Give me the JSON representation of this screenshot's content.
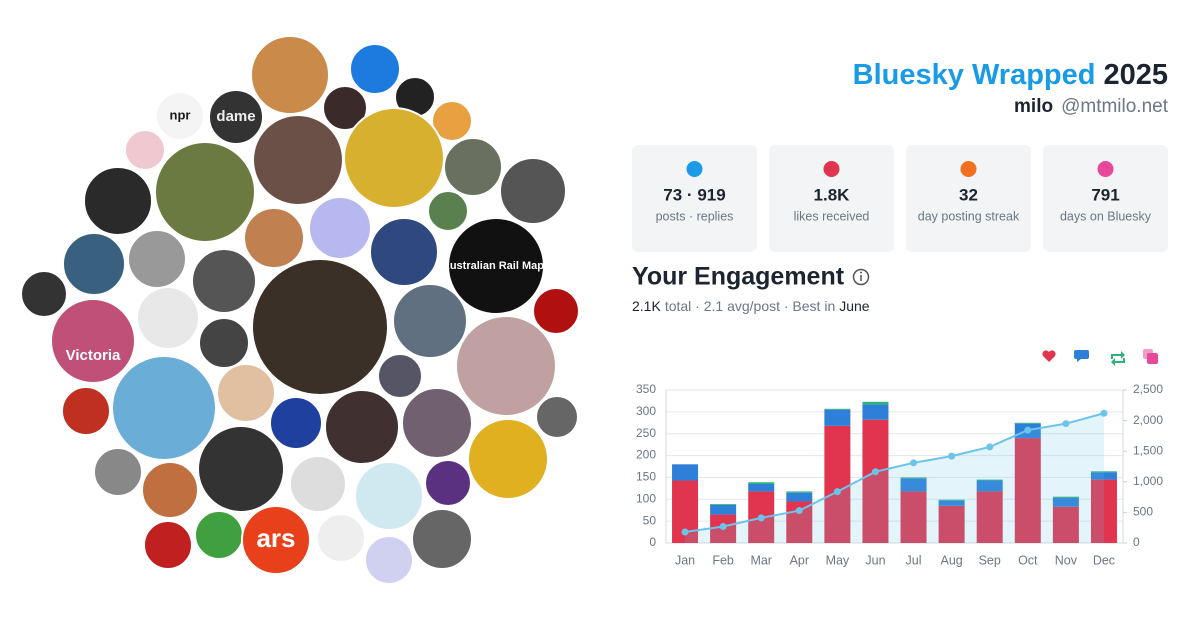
{
  "header": {
    "title": "Bluesky Wrapped",
    "year": "2025",
    "name": "milo",
    "handle": "@mtmilo.net"
  },
  "avatars": [
    "npr",
    "dame",
    "Australian Rail Maps",
    "Victoria",
    "ars"
  ],
  "stats": [
    {
      "value": "73 · 919",
      "label": "posts · replies"
    },
    {
      "value": "1.8K",
      "label": "likes received"
    },
    {
      "value": "32",
      "label": "day posting streak"
    },
    {
      "value": "791",
      "label": "days on Bluesky"
    }
  ],
  "engagement": {
    "title": "Your Engagement",
    "total": "2.1K",
    "text": "total · 2.1 avg/post · Best in",
    "best": "June"
  },
  "chart_data": {
    "type": "bar",
    "stacked": true,
    "grid": true,
    "categories": [
      "Jan",
      "Feb",
      "Mar",
      "Apr",
      "May",
      "Jun",
      "Jul",
      "Aug",
      "Sep",
      "Oct",
      "Nov",
      "Dec"
    ],
    "series": [
      {
        "color": "#e0344f",
        "values": [
          143,
          65,
          118,
          95,
          268,
          282,
          118,
          85,
          118,
          240,
          83,
          145
        ]
      },
      {
        "color": "#2e7fd8",
        "values": [
          37,
          22,
          17,
          20,
          37,
          35,
          30,
          12,
          25,
          33,
          20,
          17
        ]
      },
      {
        "color": "#2fb37a",
        "values": [
          0,
          2,
          4,
          3,
          2,
          6,
          2,
          2,
          2,
          2,
          3,
          2
        ]
      },
      {
        "color": "#e8489a",
        "values": [
          0,
          0,
          0,
          0,
          0,
          0,
          0,
          0,
          0,
          0,
          0,
          0
        ]
      },
      {
        "type": "line",
        "axis": "y2",
        "color": "#6cc4ea",
        "values": [
          180,
          270,
          410,
          530,
          840,
          1165,
          1310,
          1420,
          1570,
          1845,
          1950,
          2120
        ]
      }
    ],
    "ylim": [
      0,
      350
    ],
    "yticks": [
      0,
      50,
      100,
      150,
      200,
      250,
      300,
      350
    ],
    "y2lim": [
      0,
      2500
    ],
    "y2ticks": [
      0,
      500,
      {
        "value": 1000,
        "label": "1,000"
      },
      {
        "value": 1500,
        "label": "1,500"
      },
      {
        "value": 2000,
        "label": "2,000"
      },
      {
        "value": 2500,
        "label": "2,500"
      }
    ]
  }
}
